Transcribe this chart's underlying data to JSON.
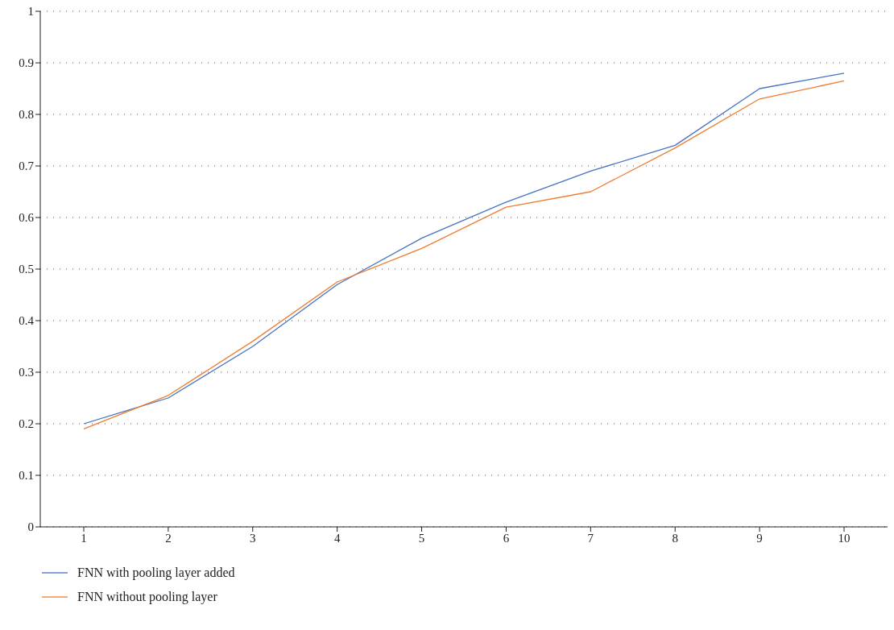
{
  "chart_data": {
    "type": "line",
    "categories": [
      "1",
      "2",
      "3",
      "4",
      "5",
      "6",
      "7",
      "8",
      "9",
      "10"
    ],
    "series": [
      {
        "name": "FNN with pooling layer added",
        "color": "#4472c4",
        "values": [
          0.2,
          0.25,
          0.35,
          0.47,
          0.56,
          0.63,
          0.69,
          0.74,
          0.85,
          0.88
        ]
      },
      {
        "name": "FNN without pooling layer",
        "color": "#ed7d31",
        "values": [
          0.19,
          0.255,
          0.36,
          0.475,
          0.54,
          0.62,
          0.65,
          0.735,
          0.83,
          0.865
        ]
      }
    ],
    "ylim": [
      0,
      1
    ],
    "yticks": [
      0,
      0.1,
      0.2,
      0.3,
      0.4,
      0.5,
      0.6,
      0.7,
      0.8,
      0.9,
      1
    ],
    "grid": "y",
    "legend": "bottom left",
    "marker": "none",
    "line_style": "solid"
  }
}
